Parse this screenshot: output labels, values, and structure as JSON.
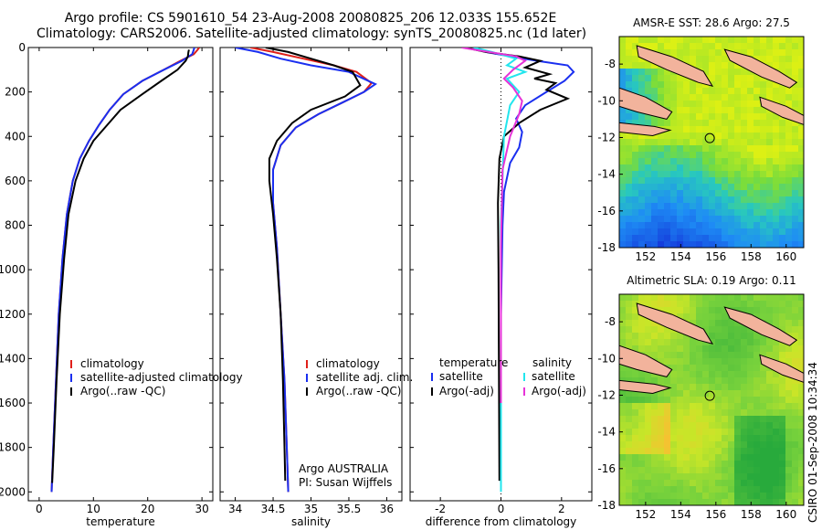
{
  "title_line1": "Argo profile: CS 5901610_54 23-Aug-2008 20080825_206 12.033S 155.652E",
  "title_line2": "Climatology: CARS2006. Satellite-adjusted climatology: synTS_20080825.nc (1d later)",
  "side_label": "CSIRO 01-Sep-2008 10:34:34",
  "colors": {
    "red": "#e0201a",
    "blue": "#1a2ff0",
    "black": "#000000",
    "cyan": "#22e6ee",
    "magenta": "#e633d8",
    "land": "#f2b39c"
  },
  "chart_data": [
    {
      "type": "line",
      "xlabel": "temperature",
      "xticks": [
        0,
        10,
        20,
        30
      ],
      "xlim": [
        -2,
        32
      ],
      "ylim": [
        2040,
        0
      ],
      "yticks": [
        0,
        200,
        400,
        600,
        800,
        1000,
        1200,
        1400,
        1600,
        1800,
        2000
      ],
      "legend": [
        "climatology",
        "satellite-adjusted climatology",
        "Argo(..raw -QC)"
      ],
      "series": [
        {
          "name": "climatology",
          "color": "red",
          "x": [
            29.5,
            29.2,
            28.5,
            26,
            23,
            19,
            15.5,
            13,
            11,
            9.2,
            7.5,
            6.2,
            5.1,
            4.3,
            3.6,
            3.1,
            2.6,
            2.3
          ],
          "y": [
            0,
            10,
            30,
            60,
            100,
            150,
            210,
            280,
            350,
            420,
            500,
            600,
            750,
            950,
            1200,
            1500,
            1800,
            2000
          ]
        },
        {
          "name": "satellite-adjusted climatology",
          "color": "blue",
          "x": [
            28.6,
            28.5,
            28.2,
            26.3,
            23,
            19,
            15.5,
            13,
            11,
            9.2,
            7.5,
            6.2,
            5.1,
            4.3,
            3.6,
            3.1,
            2.6,
            2.3
          ],
          "y": [
            0,
            10,
            30,
            60,
            100,
            150,
            210,
            280,
            350,
            420,
            500,
            600,
            750,
            950,
            1200,
            1500,
            1800,
            2000
          ]
        },
        {
          "name": "Argo(..raw -QC)",
          "color": "black",
          "x": [
            27.6,
            27.5,
            27.4,
            27,
            25.5,
            22.5,
            19,
            15,
            12.5,
            10,
            8.2,
            6.7,
            5.4,
            4.6,
            3.8,
            3.2,
            2.7,
            2.4
          ],
          "y": [
            10,
            20,
            40,
            60,
            100,
            150,
            210,
            280,
            350,
            420,
            500,
            600,
            750,
            950,
            1200,
            1500,
            1800,
            1960
          ]
        }
      ]
    },
    {
      "type": "line",
      "xlabel": "salinity",
      "xticks": [
        34,
        34.5,
        35,
        35.5,
        36
      ],
      "xlim": [
        33.8,
        36.2
      ],
      "ylim": [
        2040,
        0
      ],
      "legend": [
        "climatology",
        "satellite adj. clim.",
        "Argo(..raw -QC)"
      ],
      "annotation": [
        "Argo AUSTRALIA",
        "PI: Susan Wijffels"
      ],
      "series": [
        {
          "name": "climatology",
          "color": "red",
          "x": [
            34.2,
            34.5,
            34.9,
            35.3,
            35.6,
            35.8,
            35.7,
            35.4,
            35.1,
            34.8,
            34.6,
            34.5,
            34.5,
            34.55,
            34.6,
            34.65,
            34.68,
            34.7
          ],
          "y": [
            0,
            20,
            50,
            80,
            110,
            160,
            200,
            250,
            300,
            360,
            440,
            550,
            700,
            900,
            1200,
            1500,
            1800,
            2000
          ]
        },
        {
          "name": "satellite adj. clim.",
          "color": "blue",
          "x": [
            34.0,
            34.3,
            34.6,
            35.0,
            35.5,
            35.85,
            35.7,
            35.4,
            35.1,
            34.8,
            34.6,
            34.5,
            34.5,
            34.55,
            34.6,
            34.65,
            34.68,
            34.7
          ],
          "y": [
            0,
            20,
            50,
            80,
            110,
            165,
            200,
            250,
            300,
            360,
            440,
            550,
            700,
            900,
            1200,
            1500,
            1800,
            2000
          ]
        },
        {
          "name": "Argo(..raw -QC)",
          "color": "black",
          "x": [
            34.4,
            34.7,
            35.0,
            35.3,
            35.55,
            35.65,
            35.45,
            35.0,
            34.75,
            34.55,
            34.45,
            34.45,
            34.5,
            34.55,
            34.6,
            34.63,
            34.65,
            34.66
          ],
          "y": [
            0,
            20,
            50,
            80,
            110,
            170,
            220,
            280,
            340,
            420,
            500,
            600,
            750,
            950,
            1200,
            1500,
            1800,
            1950
          ]
        }
      ]
    },
    {
      "type": "line",
      "xlabel": "difference from climatology",
      "xticks": [
        -2,
        0,
        2
      ],
      "xlim": [
        -3,
        3
      ],
      "ylim": [
        2040,
        0
      ],
      "legend": [
        "temperature",
        "satellite",
        "Argo(-adj)",
        "salinity",
        "satellite",
        "Argo(-adj)"
      ],
      "series": [
        {
          "name": "temperature satellite",
          "color": "blue",
          "x": [
            -0.9,
            -0.5,
            0.3,
            1.2,
            2.2,
            2.4,
            2.1,
            1.5,
            0.8,
            0.5,
            0.7,
            0.6,
            0.3,
            0.1,
            0.05,
            0,
            0
          ],
          "y": [
            0,
            20,
            40,
            60,
            80,
            110,
            150,
            200,
            260,
            320,
            380,
            450,
            520,
            650,
            800,
            1200,
            1600
          ]
        },
        {
          "name": "temperature Argo(-adj)",
          "color": "black",
          "x": [
            -1.2,
            -0.5,
            0.6,
            1.3,
            0.8,
            1.6,
            1.1,
            1.8,
            1.5,
            2.2,
            1.3,
            0.6,
            0.1,
            -0.05,
            -0.1,
            -0.08,
            -0.05
          ],
          "y": [
            0,
            20,
            40,
            60,
            90,
            120,
            140,
            160,
            190,
            230,
            280,
            340,
            400,
            500,
            700,
            1000,
            1950
          ]
        },
        {
          "name": "salinity satellite",
          "color": "cyan",
          "x": [
            -0.9,
            -0.3,
            0.5,
            0.2,
            0.8,
            0.2,
            0.6,
            0.3,
            0.1,
            0,
            0
          ],
          "y": [
            0,
            20,
            50,
            80,
            110,
            140,
            200,
            260,
            400,
            800,
            2000
          ]
        },
        {
          "name": "salinity Argo(-adj)",
          "color": "magenta",
          "x": [
            -1.3,
            -0.4,
            0.5,
            0.8,
            0.4,
            0.1,
            0.4,
            0.7,
            0.6,
            0.3,
            0.05,
            0,
            0
          ],
          "y": [
            0,
            20,
            40,
            60,
            100,
            140,
            180,
            240,
            300,
            400,
            550,
            900,
            1600
          ]
        }
      ]
    }
  ],
  "maps": [
    {
      "title": "AMSR-E SST: 28.6 Argo: 27.5",
      "xticks": [
        "152",
        "154",
        "156",
        "158",
        "160"
      ],
      "yticks": [
        "-8",
        "-10",
        "-12",
        "-14",
        "-16",
        "-18"
      ],
      "xlim": [
        150.5,
        161
      ],
      "ylim": [
        -18,
        -6.5
      ],
      "marker": [
        155.652,
        -12.033
      ]
    },
    {
      "title": "Altimetric SLA: 0.19 Argo: 0.11",
      "xticks": [
        "152",
        "154",
        "156",
        "158",
        "160"
      ],
      "yticks": [
        "-8",
        "-10",
        "-12",
        "-14",
        "-16",
        "-18"
      ],
      "xlim": [
        150.5,
        161
      ],
      "ylim": [
        -18,
        -6.5
      ],
      "marker": [
        155.652,
        -12.033
      ]
    }
  ]
}
